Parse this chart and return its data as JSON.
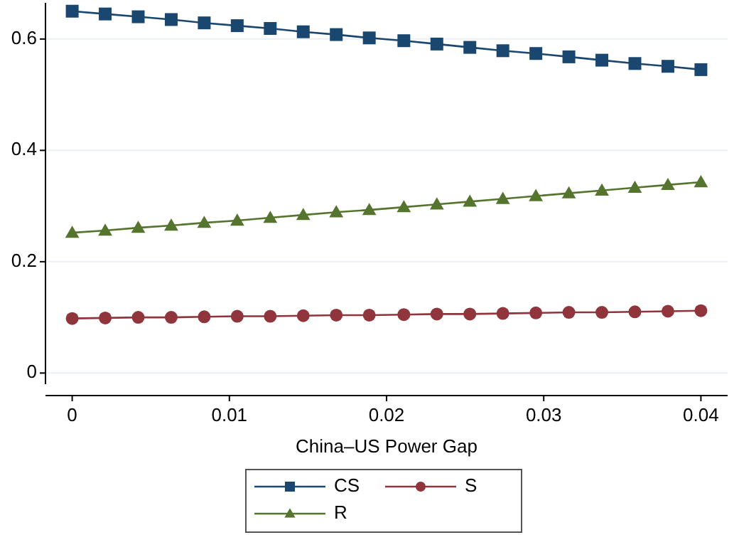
{
  "chart_data": {
    "type": "line",
    "xlabel": "China–US Power Gap",
    "x": [
      0,
      0.0021,
      0.0042,
      0.0063,
      0.0084,
      0.0105,
      0.0126,
      0.0147,
      0.0168,
      0.0189,
      0.0211,
      0.0232,
      0.0253,
      0.0274,
      0.0295,
      0.0316,
      0.0337,
      0.0358,
      0.0379,
      0.04
    ],
    "xlim": [
      -0.0017,
      0.0417
    ],
    "xticks": [
      0,
      0.01,
      0.02,
      0.03,
      0.04
    ],
    "ylim": [
      -0.02,
      0.665
    ],
    "yticks": [
      0,
      0.2,
      0.4,
      0.6
    ],
    "grid": "y",
    "legend": "bottom",
    "line_style": "solid",
    "series": [
      {
        "name": "CS",
        "color": "#1a476f",
        "marker": "square",
        "values": [
          0.65,
          0.645,
          0.64,
          0.635,
          0.629,
          0.624,
          0.619,
          0.613,
          0.608,
          0.602,
          0.597,
          0.591,
          0.585,
          0.579,
          0.574,
          0.568,
          0.562,
          0.556,
          0.551,
          0.545
        ]
      },
      {
        "name": "S",
        "color": "#90353b",
        "marker": "circle",
        "values": [
          0.098,
          0.099,
          0.1,
          0.1,
          0.101,
          0.102,
          0.102,
          0.103,
          0.104,
          0.104,
          0.105,
          0.106,
          0.106,
          0.107,
          0.108,
          0.109,
          0.109,
          0.11,
          0.111,
          0.112
        ]
      },
      {
        "name": "R",
        "color": "#55752f",
        "marker": "triangle",
        "values": [
          0.252,
          0.256,
          0.261,
          0.265,
          0.27,
          0.274,
          0.279,
          0.284,
          0.289,
          0.293,
          0.298,
          0.303,
          0.308,
          0.313,
          0.318,
          0.323,
          0.328,
          0.333,
          0.338,
          0.343
        ]
      }
    ]
  }
}
